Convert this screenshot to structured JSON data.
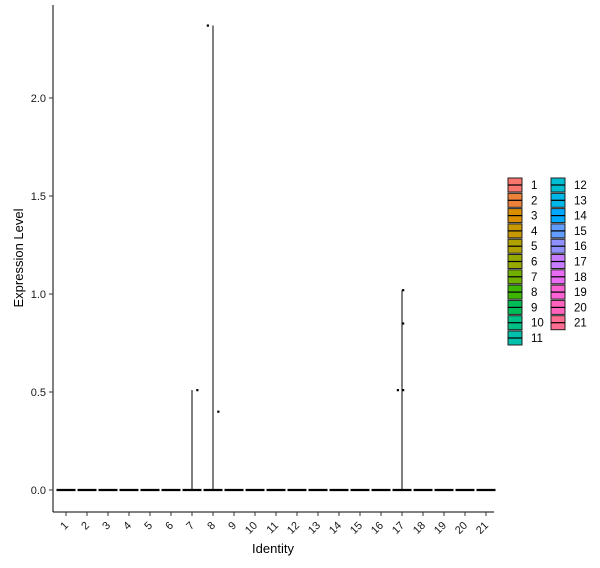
{
  "chart_data": {
    "type": "violin",
    "xlabel": "Identity",
    "ylabel": "Expression Level",
    "ylim": [
      -0.1,
      2.42
    ],
    "yticks": [
      0.0,
      0.5,
      1.0,
      1.5,
      2.0
    ],
    "ytick_labels": [
      "0.0",
      "0.5",
      "1.0",
      "1.5",
      "2.0"
    ],
    "categories": [
      "1",
      "2",
      "3",
      "4",
      "5",
      "6",
      "7",
      "8",
      "9",
      "10",
      "11",
      "12",
      "13",
      "14",
      "15",
      "16",
      "17",
      "18",
      "19",
      "20",
      "21"
    ],
    "colors": [
      "#F8766D",
      "#EC8239",
      "#DB8E00",
      "#C79800",
      "#AFA100",
      "#96A900",
      "#72B000",
      "#3DB700",
      "#00BC57",
      "#00C087",
      "#00C0AB",
      "#00BDD2",
      "#00B7E8",
      "#00A9FF",
      "#619CFF",
      "#8F91FF",
      "#C77CFF",
      "#E76BF3",
      "#FA62D4",
      "#FF62BC",
      "#FF6C90"
    ],
    "violins": [
      {
        "category": "7",
        "max": 0.51
      },
      {
        "category": "8",
        "max": 2.37
      },
      {
        "category": "17",
        "max": 1.02
      }
    ],
    "points": [
      {
        "category": "7",
        "value": 0.51,
        "offset": 0.25
      },
      {
        "category": "8",
        "value": 2.37,
        "offset": -0.25
      },
      {
        "category": "8",
        "value": 0.4,
        "offset": 0.25
      },
      {
        "category": "17",
        "value": 1.02,
        "offset": 0.05
      },
      {
        "category": "17",
        "value": 0.85,
        "offset": 0.05
      },
      {
        "category": "17",
        "value": 0.51,
        "offset": 0.05
      },
      {
        "category": "17",
        "value": 0.51,
        "offset": -0.2
      }
    ],
    "legend": {
      "position": "right",
      "columns": 2,
      "items": [
        "1",
        "2",
        "3",
        "4",
        "5",
        "6",
        "7",
        "8",
        "9",
        "10",
        "11",
        "12",
        "13",
        "14",
        "15",
        "16",
        "17",
        "18",
        "19",
        "20",
        "21"
      ]
    },
    "grid": false
  }
}
